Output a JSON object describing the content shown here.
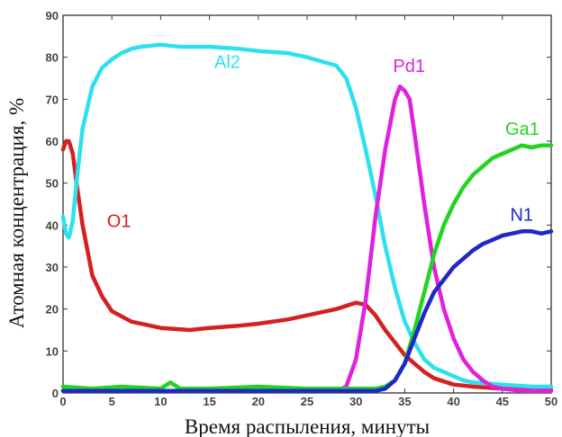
{
  "chart_data": {
    "type": "line",
    "xlabel": "Время распыления, минуты",
    "ylabel": "Атомная концентрация, %",
    "xlim": [
      0,
      50
    ],
    "ylim": [
      0,
      90
    ],
    "x_ticks": [
      0,
      5,
      10,
      15,
      20,
      25,
      30,
      35,
      40,
      45,
      50
    ],
    "y_ticks": [
      0,
      10,
      20,
      30,
      40,
      50,
      60,
      70,
      80,
      90
    ],
    "grid": false,
    "series": [
      {
        "name": "O1",
        "color": "#d42020",
        "x": [
          0,
          0.3,
          0.6,
          1,
          1.5,
          2,
          3,
          4,
          5,
          7,
          10,
          13,
          15,
          18,
          20,
          23,
          25,
          28,
          30,
          31,
          32,
          33,
          34,
          35,
          36,
          37,
          38,
          40,
          42,
          45,
          48,
          50
        ],
        "y": [
          58,
          60,
          60,
          57,
          48,
          40,
          28,
          23,
          19.5,
          17,
          15.5,
          15,
          15.5,
          16,
          16.5,
          17.5,
          18.5,
          20,
          21.5,
          21,
          18.5,
          15,
          12,
          9,
          7,
          5,
          3.5,
          2,
          1.5,
          1,
          0.8,
          0.8
        ]
      },
      {
        "name": "Al2",
        "color": "#2ee0ee",
        "x": [
          0,
          0.3,
          0.6,
          1,
          1.5,
          2,
          3,
          4,
          5,
          6,
          7,
          8,
          10,
          12,
          15,
          18,
          20,
          23,
          25,
          28,
          29,
          30,
          31,
          32,
          33,
          34,
          35,
          36,
          37,
          38,
          39,
          40,
          41,
          42,
          45,
          48,
          50
        ],
        "y": [
          42,
          38,
          37,
          41,
          53,
          63,
          73,
          77.5,
          79.5,
          81,
          82,
          82.5,
          83,
          82.5,
          82.5,
          82,
          81.5,
          81,
          80,
          78,
          75,
          68,
          58,
          47,
          35,
          25,
          17,
          12,
          8,
          6,
          5,
          4,
          3,
          2.5,
          2,
          1.5,
          1.5
        ]
      },
      {
        "name": "Pd1",
        "color": "#e020e0",
        "x": [
          0,
          5,
          10,
          15,
          20,
          25,
          28,
          29,
          30,
          31,
          32,
          33,
          34,
          34.5,
          35,
          35.5,
          36,
          37,
          38,
          39,
          40,
          41,
          42,
          43,
          44,
          45,
          47,
          50
        ],
        "y": [
          0.5,
          0.5,
          0.5,
          0.5,
          0.5,
          0.5,
          0.5,
          1.5,
          8,
          22,
          42,
          58,
          70,
          73,
          72,
          70,
          62,
          45,
          30,
          20,
          13,
          8,
          5,
          3,
          1.5,
          1,
          0.5,
          0.5
        ]
      },
      {
        "name": "Ga1",
        "color": "#22d422",
        "x": [
          0,
          3,
          6,
          10,
          11,
          12,
          15,
          20,
          25,
          30,
          32,
          33,
          34,
          35,
          36,
          37,
          38,
          39,
          40,
          41,
          42,
          43,
          44,
          45,
          46,
          47,
          48,
          49,
          50
        ],
        "y": [
          1.5,
          1,
          1.5,
          1,
          2.5,
          1,
          1,
          1.5,
          1,
          1,
          1,
          1.5,
          3,
          7,
          15,
          24,
          33,
          40,
          45,
          49,
          52,
          54,
          56,
          57,
          58,
          59,
          58.5,
          59,
          59
        ]
      },
      {
        "name": "N1",
        "color": "#1e28c8",
        "x": [
          0,
          10,
          20,
          30,
          32,
          33,
          34,
          35,
          36,
          37,
          38,
          39,
          40,
          41,
          42,
          43,
          44,
          45,
          46,
          47,
          48,
          49,
          50
        ],
        "y": [
          0.5,
          0.5,
          0.5,
          0.5,
          0.5,
          1,
          3,
          7,
          13,
          19,
          24,
          27,
          30,
          32,
          34,
          35.5,
          36.5,
          37.5,
          38,
          38.5,
          38.5,
          38,
          38.5
        ]
      }
    ],
    "annotations": [
      {
        "text": "O1",
        "color": "#d42020",
        "x": 4.5,
        "y": 39.5
      },
      {
        "text": "Al2",
        "color": "#2ee0ee",
        "x": 15.5,
        "y": 77.5
      },
      {
        "text": "Pd1",
        "color": "#e020e0",
        "x": 33.8,
        "y": 76.5
      },
      {
        "text": "Ga1",
        "color": "#22d422",
        "x": 45.3,
        "y": 61.5
      },
      {
        "text": "N1",
        "color": "#1e28c8",
        "x": 45.8,
        "y": 41
      }
    ]
  }
}
